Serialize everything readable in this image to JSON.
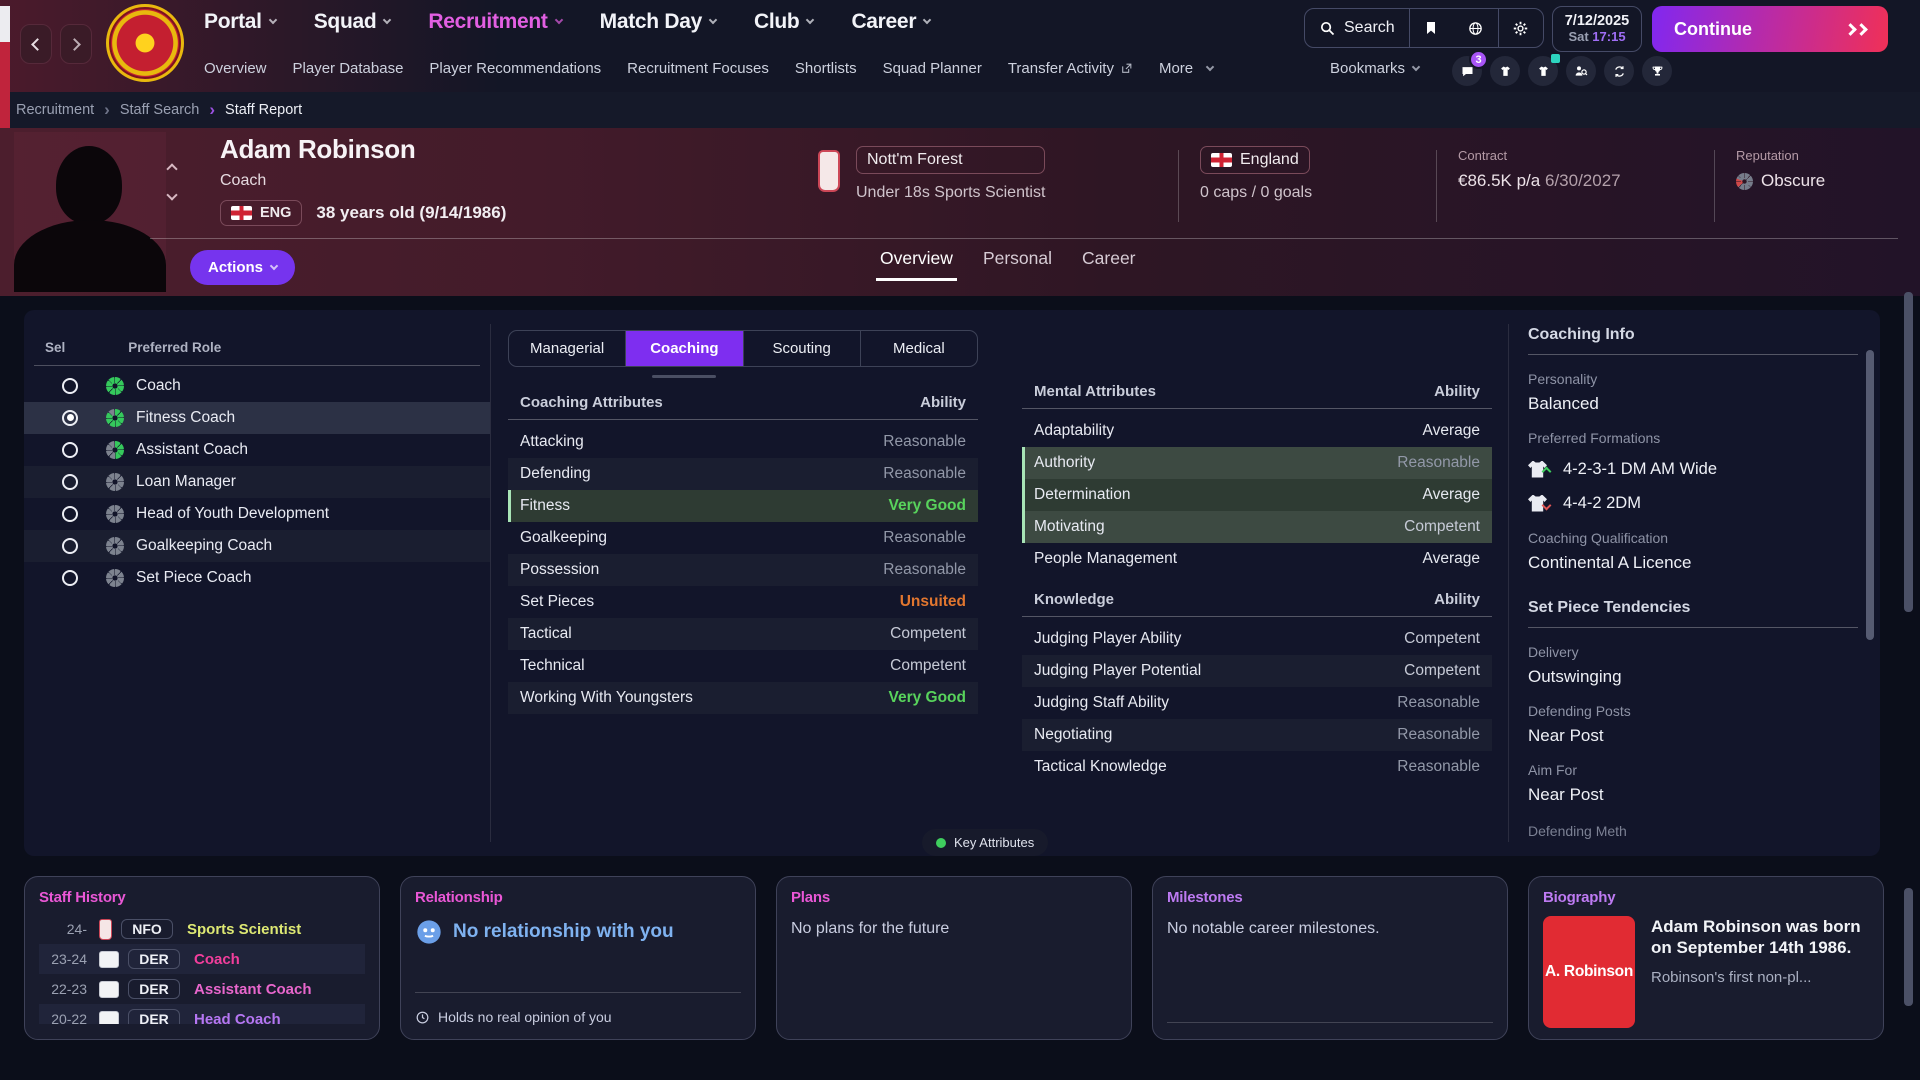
{
  "topbar": {
    "nav": [
      {
        "label": "Portal",
        "active": false
      },
      {
        "label": "Squad",
        "active": false
      },
      {
        "label": "Recruitment",
        "active": true
      },
      {
        "label": "Match Day",
        "active": false
      },
      {
        "label": "Club",
        "active": false
      },
      {
        "label": "Career",
        "active": false
      }
    ],
    "subnav": [
      {
        "label": "Overview"
      },
      {
        "label": "Player Database"
      },
      {
        "label": "Player Recommendations"
      },
      {
        "label": "Recruitment Focuses"
      },
      {
        "label": "Shortlists"
      },
      {
        "label": "Squad Planner"
      },
      {
        "label": "Transfer Activity",
        "external": true
      },
      {
        "label": "More",
        "dropdown": true
      }
    ],
    "search_label": "Search",
    "bookmarks_label": "Bookmarks",
    "notification_count": "3",
    "date": "7/12/2025",
    "day": "Sat",
    "time": "17:15",
    "continue_label": "Continue"
  },
  "breadcrumb": [
    "Recruitment",
    "Staff Search",
    "Staff Report"
  ],
  "header": {
    "name": "Adam Robinson",
    "role": "Coach",
    "nationality": "ENG",
    "age": "38 years old (9/14/1986)",
    "club_name": "Nott'm Forest",
    "club_role": "Under 18s Sports Scientist",
    "nation_name": "England",
    "caps": "0 caps / 0 goals",
    "contract_label": "Contract",
    "contract_value": "€86.5K p/a",
    "contract_expiry": "6/30/2027",
    "reputation_label": "Reputation",
    "reputation_value": "Obscure",
    "actions_label": "Actions",
    "tabs": [
      {
        "label": "Overview",
        "active": true
      },
      {
        "label": "Personal",
        "active": false
      },
      {
        "label": "Career",
        "active": false
      }
    ]
  },
  "roles_panel": {
    "col_sel": "Sel",
    "col_role": "Preferred Role",
    "rows": [
      {
        "label": "Coach",
        "suitability": "full",
        "selected": false,
        "striped": false
      },
      {
        "label": "Fitness Coach",
        "suitability": "high",
        "selected": true,
        "striped": false
      },
      {
        "label": "Assistant Coach",
        "suitability": "half",
        "selected": false,
        "striped": false
      },
      {
        "label": "Loan Manager",
        "suitability": "none",
        "selected": false,
        "striped": true
      },
      {
        "label": "Head of Youth Development",
        "suitability": "none",
        "selected": false,
        "striped": false
      },
      {
        "label": "Goalkeeping Coach",
        "suitability": "none",
        "selected": false,
        "striped": true
      },
      {
        "label": "Set Piece Coach",
        "suitability": "none",
        "selected": false,
        "striped": false
      }
    ]
  },
  "attributes": {
    "category_tabs": [
      {
        "label": "Managerial",
        "active": false
      },
      {
        "label": "Coaching",
        "active": true
      },
      {
        "label": "Scouting",
        "active": false
      },
      {
        "label": "Medical",
        "active": false
      }
    ],
    "coaching": {
      "title": "Coaching Attributes",
      "ability_label": "Ability",
      "rows": [
        {
          "name": "Attacking",
          "value": "Reasonable"
        },
        {
          "name": "Defending",
          "value": "Reasonable",
          "striped": true
        },
        {
          "name": "Fitness",
          "value": "Very Good",
          "key": true
        },
        {
          "name": "Goalkeeping",
          "value": "Reasonable"
        },
        {
          "name": "Possession",
          "value": "Reasonable",
          "striped": true
        },
        {
          "name": "Set Pieces",
          "value": "Unsuited"
        },
        {
          "name": "Tactical",
          "value": "Competent",
          "striped": true
        },
        {
          "name": "Technical",
          "value": "Competent"
        },
        {
          "name": "Working With Youngsters",
          "value": "Very Good",
          "striped": true
        }
      ]
    },
    "mental": {
      "title": "Mental Attributes",
      "ability_label": "Ability",
      "rows": [
        {
          "name": "Adaptability",
          "value": "Average"
        },
        {
          "name": "Authority",
          "value": "Reasonable",
          "key": true,
          "striped": true
        },
        {
          "name": "Determination",
          "value": "Average",
          "key": true
        },
        {
          "name": "Motivating",
          "value": "Competent",
          "key": true,
          "striped": true
        },
        {
          "name": "People Management",
          "value": "Average"
        }
      ]
    },
    "knowledge": {
      "title": "Knowledge",
      "ability_label": "Ability",
      "rows": [
        {
          "name": "Judging Player Ability",
          "value": "Competent"
        },
        {
          "name": "Judging Player Potential",
          "value": "Competent",
          "striped": true
        },
        {
          "name": "Judging Staff Ability",
          "value": "Reasonable"
        },
        {
          "name": "Negotiating",
          "value": "Reasonable",
          "striped": true
        },
        {
          "name": "Tactical Knowledge",
          "value": "Reasonable"
        }
      ]
    },
    "legend": "Key Attributes"
  },
  "coaching_info": {
    "title": "Coaching Info",
    "personality_label": "Personality",
    "personality": "Balanced",
    "formations_label": "Preferred Formations",
    "formations": [
      {
        "name": "4-2-3-1 DM AM Wide",
        "trend": "up"
      },
      {
        "name": "4-4-2 2DM",
        "trend": "down"
      }
    ],
    "qualification_label": "Coaching Qualification",
    "qualification": "Continental A Licence",
    "set_piece_title": "Set Piece Tendencies",
    "set_piece": [
      {
        "label": "Delivery",
        "value": "Outswinging"
      },
      {
        "label": "Defending Posts",
        "value": "Near Post"
      },
      {
        "label": "Aim For",
        "value": "Near Post"
      }
    ],
    "clipped_label": "Defending Meth"
  },
  "cards": {
    "staff_history": {
      "title": "Staff History",
      "rows": [
        {
          "years": "24-",
          "club": "NFO",
          "role": "Sports Scientist",
          "color": "#dde873",
          "logo": "nfo",
          "striped": false
        },
        {
          "years": "23-24",
          "club": "DER",
          "role": "Coach",
          "color": "#f23e9c",
          "logo": "der",
          "striped": true
        },
        {
          "years": "22-23",
          "club": "DER",
          "role": "Assistant Coach",
          "color": "#e866cc",
          "logo": "der",
          "striped": false
        },
        {
          "years": "20-22",
          "club": "DER",
          "role": "Head Coach",
          "color": "#b576f2",
          "logo": "der",
          "striped": true
        }
      ]
    },
    "relationship": {
      "title": "Relationship",
      "status": "No relationship with you",
      "opinion": "Holds no real opinion of you"
    },
    "plans": {
      "title": "Plans",
      "text": "No plans for the future"
    },
    "milestones": {
      "title": "Milestones",
      "text": "No notable career milestones."
    },
    "biography": {
      "title": "Biography",
      "portrait_text": "A. Robinson",
      "bold_text": "Adam Robinson was born on September 14th 1986.",
      "more_text": "Robinson's first non-pl..."
    }
  },
  "colors": {
    "accent_purple": "#7e2ef0",
    "continue_gradient_from": "#8128f0",
    "continue_gradient_to": "#f03057",
    "key_attribute_green": "#a8e4b6",
    "nav_active_magenta": "#e25fe2",
    "biography_card_red": "#e12b33"
  }
}
